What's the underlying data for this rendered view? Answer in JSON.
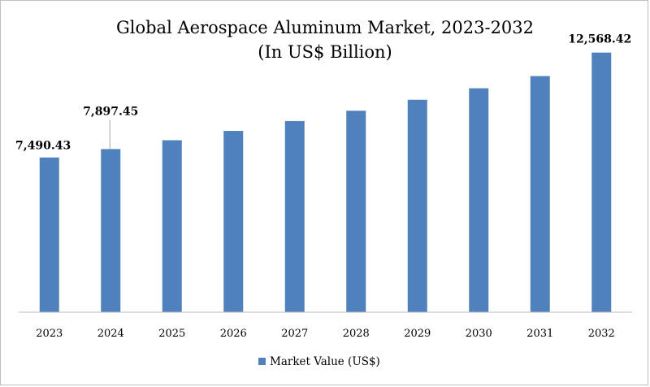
{
  "chart_data": {
    "type": "bar",
    "title": "Global Aerospace Aluminum Market, 2023-2032",
    "subtitle": "(In US$ Billion)",
    "categories": [
      "2023",
      "2024",
      "2025",
      "2026",
      "2027",
      "2028",
      "2029",
      "2030",
      "2031",
      "2032"
    ],
    "series": [
      {
        "name": "Market Value (US$)",
        "color": "#4f81bd",
        "values": [
          7490.43,
          7897.45,
          8325,
          8776,
          9252,
          9754,
          10283,
          10840,
          11430,
          12568.42
        ]
      }
    ],
    "data_labels": [
      {
        "category": "2023",
        "text": "7,490.43"
      },
      {
        "category": "2024",
        "text": "7,897.45"
      },
      {
        "category": "2032",
        "text": "12,568.42"
      }
    ],
    "xlabel": "",
    "ylabel": "",
    "ylim": [
      0,
      13500
    ],
    "grid": false,
    "legend_position": "bottom"
  }
}
